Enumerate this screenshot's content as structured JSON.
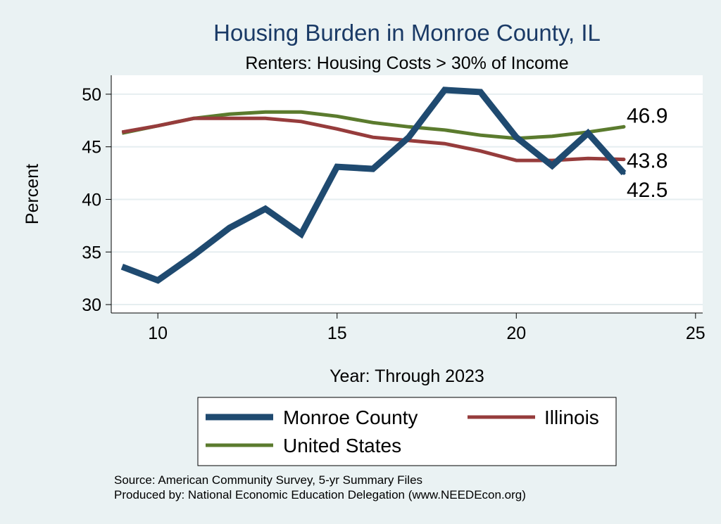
{
  "chart_data": {
    "type": "line",
    "title": "Housing Burden in Monroe County, IL",
    "subtitle": "Renters: Housing Costs > 30% of Income",
    "xlabel": "Year: Through 2023",
    "ylabel": "Percent",
    "xlim": [
      8.7,
      25.2
    ],
    "ylim": [
      29.2,
      51.8
    ],
    "xticks": [
      10,
      15,
      20,
      25
    ],
    "yticks": [
      30,
      35,
      40,
      45,
      50
    ],
    "grid": true,
    "series": [
      {
        "name": "Monroe County",
        "color": "#1f4a70",
        "x": [
          9,
          10,
          11,
          12,
          13,
          14,
          15,
          16,
          17,
          18,
          19,
          20,
          21,
          22,
          23
        ],
        "values": [
          33.6,
          32.3,
          34.7,
          37.3,
          39.1,
          36.7,
          43.1,
          42.9,
          45.9,
          50.4,
          50.2,
          45.9,
          43.2,
          46.3,
          42.5
        ],
        "end_label": "42.5"
      },
      {
        "name": "Illinois",
        "color": "#963c3c",
        "x": [
          9,
          10,
          11,
          12,
          13,
          14,
          15,
          16,
          17,
          18,
          19,
          20,
          21,
          22,
          23
        ],
        "values": [
          46.4,
          47.0,
          47.7,
          47.7,
          47.7,
          47.4,
          46.7,
          45.9,
          45.6,
          45.3,
          44.6,
          43.7,
          43.7,
          43.9,
          43.8
        ],
        "end_label": "43.8"
      },
      {
        "name": "United States",
        "color": "#5b7b2e",
        "x": [
          9,
          10,
          11,
          12,
          13,
          14,
          15,
          16,
          17,
          18,
          19,
          20,
          21,
          22,
          23
        ],
        "values": [
          46.3,
          47.0,
          47.7,
          48.1,
          48.3,
          48.3,
          47.9,
          47.3,
          46.9,
          46.6,
          46.1,
          45.8,
          46.0,
          46.4,
          46.9
        ],
        "end_label": "46.9"
      }
    ],
    "legend": [
      "Monroe County",
      "Illinois",
      "United States"
    ],
    "legend_position": "bottom",
    "notes": [
      "Source: American Community Survey, 5-yr Summary Files",
      "Produced by: National Economic Education Delegation (www.NEEDEcon.org)"
    ]
  }
}
